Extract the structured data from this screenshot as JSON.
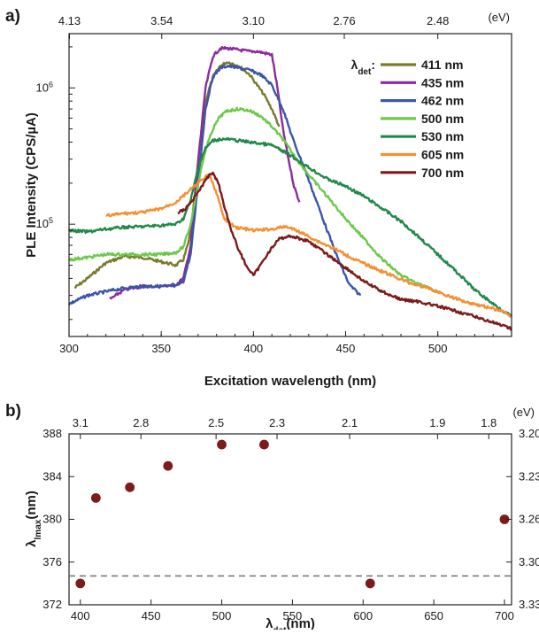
{
  "chart_data": [
    {
      "panel_label": "a)",
      "type": "line",
      "xlabel": "Excitation wavelength (nm)",
      "ylabel": "PLE Intensity (CPS/µA)",
      "xlim": [
        300,
        540
      ],
      "ylim": [
        15000,
        2500000
      ],
      "yscale": "log",
      "x_ticks": [
        "300",
        "350",
        "400",
        "450",
        "500"
      ],
      "y_ticks": [
        {
          "value": 100000,
          "base": "10",
          "exp": "5"
        },
        {
          "value": 1000000,
          "base": "10",
          "exp": "6"
        }
      ],
      "top_axis_unit": "(eV)",
      "top_ticks": [
        "4.13",
        "3.54",
        "3.10",
        "2.76",
        "2.48"
      ],
      "legend_title": {
        "main": "λ",
        "sub": "det",
        "suffix": ":"
      },
      "legend_position": "top-right",
      "series": [
        {
          "name": "411 nm",
          "color": "#7a7a2e",
          "points": [
            [
              303,
              34000
            ],
            [
              310,
              40000
            ],
            [
              320,
              52000
            ],
            [
              330,
              58000
            ],
            [
              340,
              57000
            ],
            [
              350,
              53000
            ],
            [
              358,
              50000
            ],
            [
              362,
              55000
            ],
            [
              365,
              75000
            ],
            [
              368,
              150000
            ],
            [
              371,
              400000
            ],
            [
              374,
              800000
            ],
            [
              378,
              1200000
            ],
            [
              382,
              1450000
            ],
            [
              386,
              1550000
            ],
            [
              392,
              1450000
            ],
            [
              398,
              1250000
            ],
            [
              402,
              1050000
            ],
            [
              406,
              880000
            ],
            [
              410,
              700000
            ],
            [
              414,
              520000
            ]
          ]
        },
        {
          "name": "435 nm",
          "color": "#8a2c9a",
          "points": [
            [
              322,
              28000
            ],
            [
              330,
              33000
            ],
            [
              340,
              35000
            ],
            [
              350,
              35000
            ],
            [
              358,
              36000
            ],
            [
              362,
              40000
            ],
            [
              366,
              70000
            ],
            [
              370,
              280000
            ],
            [
              374,
              1000000
            ],
            [
              378,
              1700000
            ],
            [
              382,
              1950000
            ],
            [
              386,
              1950000
            ],
            [
              392,
              1900000
            ],
            [
              398,
              1850000
            ],
            [
              402,
              1850000
            ],
            [
              406,
              1800000
            ],
            [
              410,
              1750000
            ],
            [
              413,
              1000000
            ],
            [
              416,
              500000
            ],
            [
              419,
              300000
            ],
            [
              422,
              190000
            ],
            [
              425,
              145000
            ]
          ]
        },
        {
          "name": "462 nm",
          "color": "#3b56a6",
          "points": [
            [
              300,
              26000
            ],
            [
              310,
              30000
            ],
            [
              320,
              32000
            ],
            [
              330,
              34000
            ],
            [
              340,
              35000
            ],
            [
              350,
              35000
            ],
            [
              358,
              35000
            ],
            [
              362,
              38000
            ],
            [
              366,
              60000
            ],
            [
              370,
              200000
            ],
            [
              374,
              700000
            ],
            [
              378,
              1200000
            ],
            [
              382,
              1400000
            ],
            [
              386,
              1450000
            ],
            [
              392,
              1400000
            ],
            [
              398,
              1350000
            ],
            [
              404,
              1250000
            ],
            [
              410,
              1050000
            ],
            [
              416,
              700000
            ],
            [
              422,
              400000
            ],
            [
              428,
              250000
            ],
            [
              434,
              150000
            ],
            [
              440,
              90000
            ],
            [
              446,
              55000
            ],
            [
              452,
              36000
            ],
            [
              458,
              30000
            ]
          ]
        },
        {
          "name": "500 nm",
          "color": "#6ec84b",
          "points": [
            [
              300,
              55000
            ],
            [
              310,
              57000
            ],
            [
              320,
              60000
            ],
            [
              330,
              60000
            ],
            [
              340,
              60000
            ],
            [
              350,
              60000
            ],
            [
              358,
              62000
            ],
            [
              362,
              68000
            ],
            [
              366,
              100000
            ],
            [
              370,
              200000
            ],
            [
              374,
              350000
            ],
            [
              378,
              500000
            ],
            [
              382,
              620000
            ],
            [
              386,
              680000
            ],
            [
              392,
              700000
            ],
            [
              398,
              680000
            ],
            [
              404,
              620000
            ],
            [
              410,
              520000
            ],
            [
              416,
              420000
            ],
            [
              422,
              320000
            ],
            [
              430,
              230000
            ],
            [
              440,
              160000
            ],
            [
              450,
              110000
            ],
            [
              460,
              78000
            ],
            [
              470,
              55000
            ],
            [
              480,
              42000
            ],
            [
              490,
              36000
            ],
            [
              500,
              32000
            ]
          ]
        },
        {
          "name": "530 nm",
          "color": "#23884a",
          "points": [
            [
              300,
              90000
            ],
            [
              310,
              88000
            ],
            [
              320,
              92000
            ],
            [
              330,
              95000
            ],
            [
              340,
              96000
            ],
            [
              350,
              98000
            ],
            [
              358,
              100000
            ],
            [
              362,
              110000
            ],
            [
              366,
              150000
            ],
            [
              370,
              260000
            ],
            [
              374,
              360000
            ],
            [
              378,
              410000
            ],
            [
              382,
              420000
            ],
            [
              386,
              420000
            ],
            [
              392,
              410000
            ],
            [
              398,
              400000
            ],
            [
              404,
              390000
            ],
            [
              410,
              380000
            ],
            [
              420,
              320000
            ],
            [
              430,
              260000
            ],
            [
              440,
              215000
            ],
            [
              450,
              190000
            ],
            [
              460,
              160000
            ],
            [
              470,
              130000
            ],
            [
              480,
              105000
            ],
            [
              490,
              80000
            ],
            [
              500,
              60000
            ],
            [
              510,
              45000
            ],
            [
              520,
              33000
            ],
            [
              530,
              26000
            ],
            [
              540,
              21000
            ]
          ]
        },
        {
          "name": "605 nm",
          "color": "#f39035",
          "points": [
            [
              320,
              115000
            ],
            [
              330,
              120000
            ],
            [
              340,
              122000
            ],
            [
              350,
              130000
            ],
            [
              358,
              145000
            ],
            [
              365,
              175000
            ],
            [
              372,
              210000
            ],
            [
              376,
              230000
            ],
            [
              380,
              170000
            ],
            [
              384,
              110000
            ],
            [
              390,
              95000
            ],
            [
              400,
              90000
            ],
            [
              410,
              92000
            ],
            [
              418,
              96000
            ],
            [
              425,
              88000
            ],
            [
              435,
              75000
            ],
            [
              445,
              65000
            ],
            [
              455,
              55000
            ],
            [
              465,
              48000
            ],
            [
              475,
              42000
            ],
            [
              485,
              37000
            ],
            [
              495,
              34000
            ],
            [
              505,
              30000
            ],
            [
              515,
              27000
            ],
            [
              525,
              25000
            ],
            [
              535,
              23000
            ],
            [
              540,
              21000
            ]
          ]
        },
        {
          "name": "700 nm",
          "color": "#7d1a1a",
          "points": [
            [
              359,
              120000
            ],
            [
              363,
              130000
            ],
            [
              367,
              150000
            ],
            [
              371,
              180000
            ],
            [
              375,
              220000
            ],
            [
              378,
              240000
            ],
            [
              381,
              200000
            ],
            [
              384,
              140000
            ],
            [
              388,
              90000
            ],
            [
              392,
              65000
            ],
            [
              396,
              50000
            ],
            [
              400,
              42000
            ],
            [
              403,
              48000
            ],
            [
              408,
              62000
            ],
            [
              414,
              78000
            ],
            [
              420,
              82000
            ],
            [
              430,
              75000
            ],
            [
              440,
              60000
            ],
            [
              450,
              48000
            ],
            [
              460,
              38000
            ],
            [
              470,
              32000
            ],
            [
              480,
              28000
            ],
            [
              490,
              27000
            ],
            [
              500,
              25000
            ],
            [
              510,
              23000
            ],
            [
              520,
              21000
            ],
            [
              530,
              19000
            ],
            [
              540,
              17000
            ]
          ]
        }
      ]
    },
    {
      "panel_label": "b)",
      "type": "scatter",
      "xlabel": {
        "main": "λ",
        "sub": "det",
        "suffix": "(nm)"
      },
      "ylabel": {
        "main": "λ",
        "sub": "lmax",
        "suffix": "(nm)"
      },
      "xlim": [
        392,
        705
      ],
      "ylim": [
        372,
        388
      ],
      "x_ticks": [
        "400",
        "450",
        "500",
        "550",
        "600",
        "650",
        "700"
      ],
      "y_ticks": [
        "372",
        "376",
        "380",
        "384",
        "388"
      ],
      "top_axis_unit": "(eV)",
      "top_ticks": [
        "3.1",
        "2.8",
        "2.5",
        "2.3",
        "2.1",
        "1.9",
        "1.8"
      ],
      "right_ticks": [
        "3.20",
        "3.23",
        "3.26",
        "3.30",
        "3.33"
      ],
      "reference_line_y": 374.7,
      "marker_color": "#7d1a1a",
      "points": [
        [
          400,
          374
        ],
        [
          411,
          382
        ],
        [
          435,
          383
        ],
        [
          462,
          385
        ],
        [
          500,
          387
        ],
        [
          530,
          387
        ],
        [
          605,
          374
        ],
        [
          700,
          380
        ]
      ]
    }
  ]
}
